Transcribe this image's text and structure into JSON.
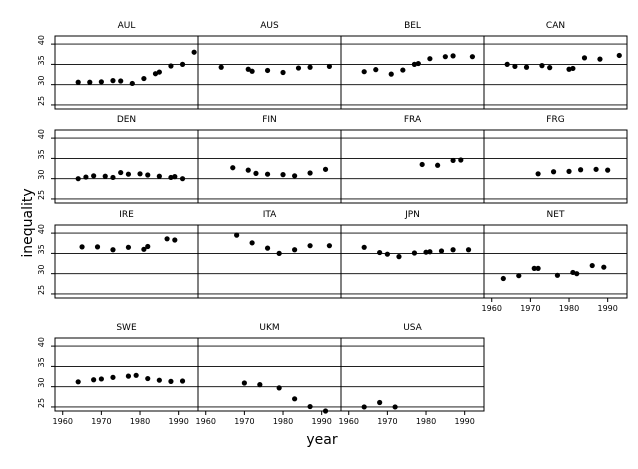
{
  "chart_data": {
    "type": "scatter",
    "xlabel": "year",
    "ylabel": "inequality",
    "xlim": [
      1958,
      1995
    ],
    "ylim": [
      24,
      42
    ],
    "x_ticks": [
      1960,
      1970,
      1980,
      1990
    ],
    "y_ticks": [
      25,
      30,
      35,
      40
    ],
    "grid": true,
    "panels": [
      {
        "name": "AUL",
        "points": [
          [
            1964,
            30.6
          ],
          [
            1967,
            30.6
          ],
          [
            1970,
            30.7
          ],
          [
            1973,
            31.0
          ],
          [
            1975,
            30.9
          ],
          [
            1978,
            30.3
          ],
          [
            1981,
            31.5
          ],
          [
            1984,
            32.7
          ],
          [
            1985,
            33.1
          ],
          [
            1988,
            34.6
          ],
          [
            1991,
            35.0
          ],
          [
            1994,
            38.0
          ]
        ]
      },
      {
        "name": "AUS",
        "points": [
          [
            1964,
            34.3
          ],
          [
            1971,
            33.8
          ],
          [
            1972,
            33.3
          ],
          [
            1976,
            33.5
          ],
          [
            1980,
            33.0
          ],
          [
            1984,
            34.1
          ],
          [
            1987,
            34.3
          ],
          [
            1992,
            34.5
          ]
        ]
      },
      {
        "name": "BEL",
        "points": [
          [
            1964,
            33.2
          ],
          [
            1967,
            33.7
          ],
          [
            1971,
            32.6
          ],
          [
            1974,
            33.6
          ],
          [
            1977,
            35.0
          ],
          [
            1978,
            35.2
          ],
          [
            1981,
            36.4
          ],
          [
            1985,
            36.9
          ],
          [
            1987,
            37.1
          ],
          [
            1992,
            36.9
          ]
        ]
      },
      {
        "name": "CAN",
        "points": [
          [
            1964,
            35.0
          ],
          [
            1966,
            34.5
          ],
          [
            1969,
            34.3
          ],
          [
            1973,
            34.7
          ],
          [
            1975,
            34.2
          ],
          [
            1980,
            33.8
          ],
          [
            1981,
            34.0
          ],
          [
            1984,
            36.6
          ],
          [
            1988,
            36.3
          ],
          [
            1993,
            37.2
          ]
        ]
      },
      {
        "name": "DEN",
        "points": [
          [
            1964,
            30.0
          ],
          [
            1966,
            30.4
          ],
          [
            1968,
            30.7
          ],
          [
            1971,
            30.6
          ],
          [
            1973,
            30.3
          ],
          [
            1975,
            31.5
          ],
          [
            1977,
            31.1
          ],
          [
            1980,
            31.2
          ],
          [
            1982,
            30.9
          ],
          [
            1985,
            30.6
          ],
          [
            1988,
            30.3
          ],
          [
            1989,
            30.5
          ],
          [
            1991,
            30.0
          ]
        ]
      },
      {
        "name": "FIN",
        "points": [
          [
            1967,
            32.7
          ],
          [
            1971,
            32.1
          ],
          [
            1973,
            31.3
          ],
          [
            1976,
            31.1
          ],
          [
            1980,
            31.0
          ],
          [
            1983,
            30.7
          ],
          [
            1987,
            31.4
          ],
          [
            1991,
            32.3
          ]
        ]
      },
      {
        "name": "FRA",
        "points": [
          [
            1979,
            33.5
          ],
          [
            1983,
            33.3
          ],
          [
            1987,
            34.5
          ],
          [
            1989,
            34.6
          ]
        ]
      },
      {
        "name": "FRG",
        "points": [
          [
            1972,
            31.2
          ],
          [
            1976,
            31.7
          ],
          [
            1980,
            31.8
          ],
          [
            1983,
            32.2
          ],
          [
            1987,
            32.3
          ],
          [
            1990,
            32.1
          ]
        ]
      },
      {
        "name": "IRE",
        "points": [
          [
            1965,
            36.6
          ],
          [
            1969,
            36.6
          ],
          [
            1973,
            35.9
          ],
          [
            1977,
            36.5
          ],
          [
            1981,
            36.0
          ],
          [
            1982,
            36.7
          ],
          [
            1987,
            38.6
          ],
          [
            1989,
            38.3
          ]
        ]
      },
      {
        "name": "ITA",
        "points": [
          [
            1968,
            39.5
          ],
          [
            1972,
            37.6
          ],
          [
            1976,
            36.3
          ],
          [
            1979,
            35.0
          ],
          [
            1983,
            35.9
          ],
          [
            1987,
            36.9
          ],
          [
            1992,
            36.9
          ]
        ]
      },
      {
        "name": "JPN",
        "points": [
          [
            1964,
            36.5
          ],
          [
            1968,
            35.2
          ],
          [
            1970,
            34.8
          ],
          [
            1973,
            34.2
          ],
          [
            1977,
            35.1
          ],
          [
            1980,
            35.3
          ],
          [
            1981,
            35.4
          ],
          [
            1984,
            35.6
          ],
          [
            1987,
            35.9
          ],
          [
            1991,
            35.9
          ]
        ]
      },
      {
        "name": "NET",
        "points": [
          [
            1963,
            28.8
          ],
          [
            1967,
            29.5
          ],
          [
            1971,
            31.3
          ],
          [
            1972,
            31.3
          ],
          [
            1977,
            29.6
          ],
          [
            1981,
            30.3
          ],
          [
            1982,
            30.0
          ],
          [
            1986,
            32.0
          ],
          [
            1989,
            31.6
          ]
        ]
      },
      {
        "name": "SWE",
        "points": [
          [
            1964,
            31.2
          ],
          [
            1968,
            31.7
          ],
          [
            1970,
            31.9
          ],
          [
            1973,
            32.3
          ],
          [
            1977,
            32.6
          ],
          [
            1979,
            32.8
          ],
          [
            1982,
            32.0
          ],
          [
            1985,
            31.6
          ],
          [
            1988,
            31.3
          ],
          [
            1991,
            31.4
          ]
        ]
      },
      {
        "name": "UKM",
        "points": [
          [
            1970,
            30.9
          ],
          [
            1974,
            30.5
          ],
          [
            1979,
            29.7
          ],
          [
            1983,
            27.0
          ],
          [
            1987,
            25.1
          ],
          [
            1991,
            24.0
          ]
        ]
      },
      {
        "name": "USA",
        "points": [
          [
            1964,
            25.0
          ],
          [
            1968,
            26.1
          ],
          [
            1972,
            25.0
          ],
          [
            1976,
            23.9
          ],
          [
            1980,
            23.6
          ],
          [
            1983,
            23.0
          ],
          [
            1987,
            22.7
          ],
          [
            1991,
            22.6
          ]
        ]
      }
    ]
  }
}
